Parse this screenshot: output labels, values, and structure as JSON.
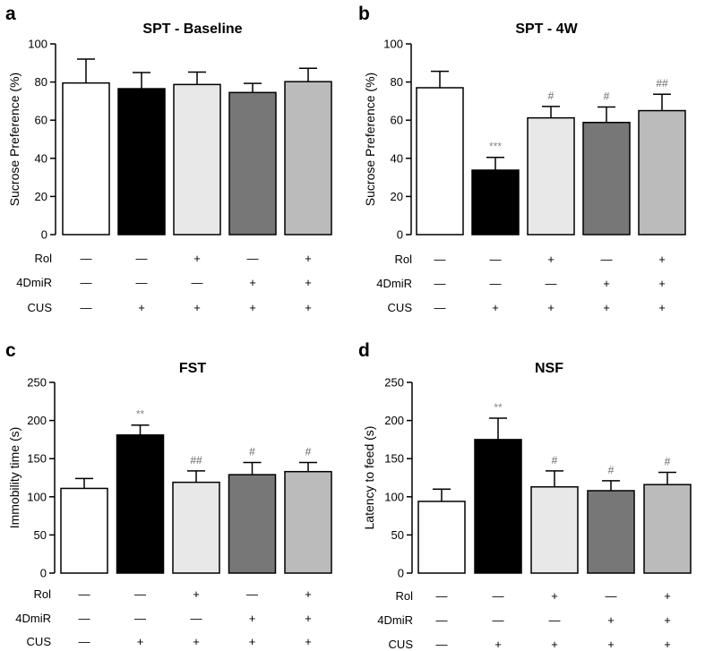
{
  "chart_data": [
    {
      "type": "bar",
      "panel": "a",
      "title": "SPT - Baseline",
      "ylabel": "Sucrose Preference (%)",
      "ylim": [
        0,
        100
      ],
      "yticks": [
        0,
        20,
        40,
        60,
        80,
        100
      ],
      "values": [
        79.5,
        76.5,
        78.7,
        74.5,
        80.2
      ],
      "errors": [
        12.5,
        8.5,
        6.5,
        4.8,
        7.0
      ],
      "fills": [
        "#ffffff",
        "#000000",
        "#e8e8e8",
        "#777777",
        "#bbbbbb"
      ],
      "significance": [
        "",
        "",
        "",
        "",
        ""
      ],
      "sig_colors": [
        "#888888",
        "#888888",
        "#666666",
        "#666666",
        "#666666"
      ],
      "conditions": [
        {
          "label": "Rol",
          "signs": [
            "—",
            "—",
            "+",
            "—",
            "+"
          ]
        },
        {
          "label": "4DmiR",
          "signs": [
            "—",
            "—",
            "—",
            "+",
            "+"
          ]
        },
        {
          "label": "CUS",
          "signs": [
            "—",
            "+",
            "+",
            "+",
            "+"
          ]
        }
      ]
    },
    {
      "type": "bar",
      "panel": "b",
      "title": "SPT - 4W",
      "ylabel": "Sucrose Preference (%)",
      "ylim": [
        0,
        100
      ],
      "yticks": [
        0,
        20,
        40,
        60,
        80,
        100
      ],
      "values": [
        77.0,
        33.8,
        61.2,
        58.8,
        65.0
      ],
      "errors": [
        8.6,
        6.7,
        6.0,
        8.1,
        8.6
      ],
      "fills": [
        "#ffffff",
        "#000000",
        "#e8e8e8",
        "#777777",
        "#bbbbbb"
      ],
      "significance": [
        "",
        "***",
        "#",
        "#",
        "##"
      ],
      "sig_colors": [
        "#888888",
        "#888888",
        "#666666",
        "#666666",
        "#666666"
      ],
      "conditions": [
        {
          "label": "Rol",
          "signs": [
            "—",
            "—",
            "+",
            "—",
            "+"
          ]
        },
        {
          "label": "4DmiR",
          "signs": [
            "—",
            "—",
            "—",
            "+",
            "+"
          ]
        },
        {
          "label": "CUS",
          "signs": [
            "—",
            "+",
            "+",
            "+",
            "+"
          ]
        }
      ]
    },
    {
      "type": "bar",
      "panel": "c",
      "title": "FST",
      "ylabel": "Immobility time (s)",
      "ylim": [
        0,
        250
      ],
      "yticks": [
        0,
        50,
        100,
        150,
        200,
        250
      ],
      "values": [
        111,
        181,
        119,
        129,
        133
      ],
      "errors": [
        13,
        13,
        15,
        16,
        12
      ],
      "fills": [
        "#ffffff",
        "#000000",
        "#e8e8e8",
        "#777777",
        "#bbbbbb"
      ],
      "significance": [
        "",
        "**",
        "##",
        "#",
        "#"
      ],
      "sig_colors": [
        "#888888",
        "#888888",
        "#666666",
        "#666666",
        "#666666"
      ],
      "conditions": [
        {
          "label": "Rol",
          "signs": [
            "—",
            "—",
            "+",
            "—",
            "+"
          ]
        },
        {
          "label": "4DmiR",
          "signs": [
            "—",
            "—",
            "—",
            "+",
            "+"
          ]
        },
        {
          "label": "CUS",
          "signs": [
            "—",
            "+",
            "+",
            "+",
            "+"
          ]
        }
      ]
    },
    {
      "type": "bar",
      "panel": "d",
      "title": "NSF",
      "ylabel": "Latency to feed (s)",
      "ylim": [
        0,
        250
      ],
      "yticks": [
        0,
        50,
        100,
        150,
        200,
        250
      ],
      "values": [
        94,
        175,
        113,
        108,
        116
      ],
      "errors": [
        16,
        28,
        21,
        13,
        16
      ],
      "fills": [
        "#ffffff",
        "#000000",
        "#e8e8e8",
        "#777777",
        "#bbbbbb"
      ],
      "significance": [
        "",
        "**",
        "#",
        "#",
        "#"
      ],
      "sig_colors": [
        "#888888",
        "#888888",
        "#666666",
        "#666666",
        "#666666"
      ],
      "conditions": [
        {
          "label": "Rol",
          "signs": [
            "—",
            "—",
            "+",
            "—",
            "+"
          ]
        },
        {
          "label": "4DmiR",
          "signs": [
            "—",
            "—",
            "—",
            "+",
            "+"
          ]
        },
        {
          "label": "CUS",
          "signs": [
            "—",
            "+",
            "+",
            "+",
            "+"
          ]
        }
      ]
    }
  ]
}
